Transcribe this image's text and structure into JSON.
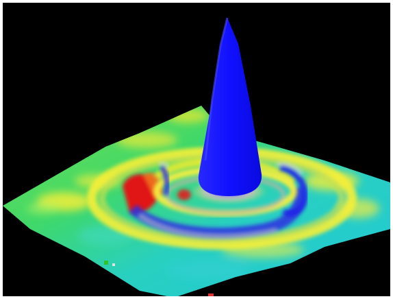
{
  "image": {
    "subject": "surface-plot",
    "background_color": "#000000",
    "border_color": "#ffffff",
    "palette": {
      "peak": "#1010ff",
      "cyan": "#1fe0c8",
      "green": "#3bdd3b",
      "yellow": "#f4f02a",
      "orange": "#f0a020",
      "red": "#e02020"
    }
  }
}
